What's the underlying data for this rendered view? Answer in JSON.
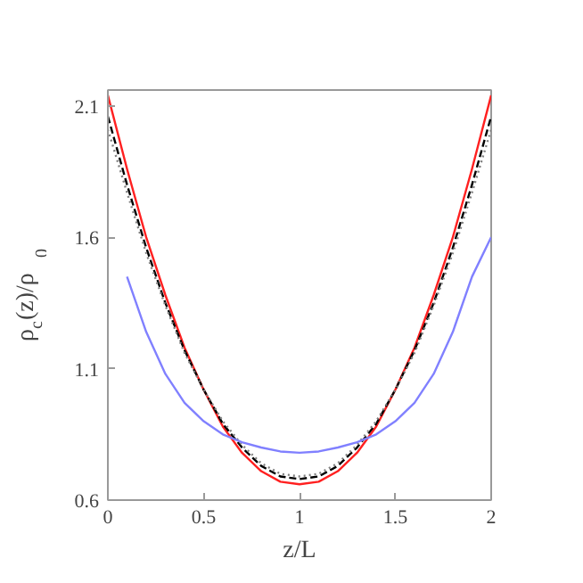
{
  "chart_data": {
    "type": "line",
    "xlabel": "z/L",
    "ylabel": "ρ$_{c}$(z)/ρ$_{0}$",
    "x": [
      0,
      0.1,
      0.2,
      0.3,
      0.4,
      0.5,
      0.6,
      0.7,
      0.8,
      0.9,
      1.0,
      1.1,
      1.2,
      1.3,
      1.4,
      1.5,
      1.6,
      1.7,
      1.8,
      1.9,
      2.0
    ],
    "xlim": [
      0,
      2
    ],
    "ylim": [
      0.6,
      2.16
    ],
    "xticks": [
      0,
      0.5,
      1,
      1.5,
      2
    ],
    "yticks": [
      0.6,
      1.1,
      1.6,
      2.1
    ],
    "grid": false,
    "series": [
      {
        "color": "#ff2020",
        "line_style": "solid",
        "values": [
          2.14,
          1.86,
          1.6,
          1.38,
          1.18,
          1.02,
          0.88,
          0.78,
          0.71,
          0.67,
          0.66,
          0.67,
          0.71,
          0.78,
          0.88,
          1.02,
          1.18,
          1.38,
          1.6,
          1.86,
          2.14
        ]
      },
      {
        "color": "#000000",
        "line_style": "dashed",
        "values": [
          2.06,
          1.8,
          1.56,
          1.35,
          1.17,
          1.02,
          0.89,
          0.8,
          0.73,
          0.69,
          0.68,
          0.69,
          0.73,
          0.8,
          0.89,
          1.02,
          1.17,
          1.35,
          1.56,
          1.8,
          2.06
        ]
      },
      {
        "color": "#808080",
        "line_style": "dotted",
        "values": [
          2.01,
          1.77,
          1.54,
          1.34,
          1.16,
          1.02,
          0.9,
          0.81,
          0.74,
          0.7,
          0.69,
          0.7,
          0.74,
          0.81,
          0.9,
          1.02,
          1.16,
          1.34,
          1.54,
          1.77,
          2.01
        ]
      },
      {
        "color": "#8080ff",
        "line_style": "solid",
        "values": [
          null,
          1.45,
          1.24,
          1.08,
          0.97,
          0.9,
          0.85,
          0.82,
          0.8,
          0.785,
          0.78,
          0.785,
          0.8,
          0.82,
          0.85,
          0.9,
          0.97,
          1.08,
          1.24,
          1.45,
          1.6
        ]
      }
    ]
  }
}
